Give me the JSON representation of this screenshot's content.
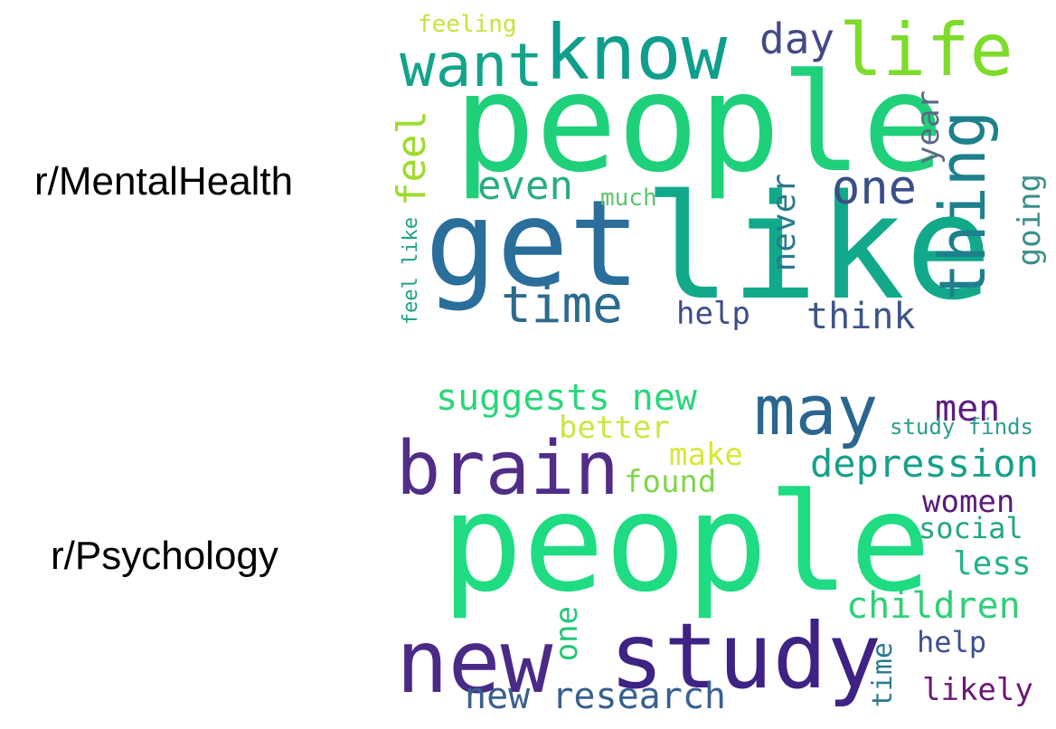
{
  "panels": [
    {
      "label": "r/MentalHealth",
      "words": [
        {
          "text": "people",
          "color": "#1fd07a"
        },
        {
          "text": "get",
          "color": "#2a6e9b"
        },
        {
          "text": "like",
          "color": "#12a98a"
        },
        {
          "text": "know",
          "color": "#109e8c"
        },
        {
          "text": "life",
          "color": "#7ddc2a"
        },
        {
          "text": "want",
          "color": "#13a489"
        },
        {
          "text": "thing",
          "color": "#1e808d"
        },
        {
          "text": "time",
          "color": "#2c6b8e"
        },
        {
          "text": "one",
          "color": "#3a4f88"
        },
        {
          "text": "even",
          "color": "#28ae7e"
        },
        {
          "text": "day",
          "color": "#434a85"
        },
        {
          "text": "feel",
          "color": "#9cdc2e"
        },
        {
          "text": "year",
          "color": "#5a6a86"
        },
        {
          "text": "never",
          "color": "#2b7a8c"
        },
        {
          "text": "going",
          "color": "#3b8f8a"
        },
        {
          "text": "think",
          "color": "#3d5589"
        },
        {
          "text": "help",
          "color": "#3f4c87"
        },
        {
          "text": "feeling",
          "color": "#c8e33a"
        },
        {
          "text": "much",
          "color": "#5cc86a"
        },
        {
          "text": "feel like",
          "color": "#20a188"
        }
      ]
    },
    {
      "label": "r/Psychology",
      "words": [
        {
          "text": "people",
          "color": "#1fdc82"
        },
        {
          "text": "new",
          "color": "#4a2a86"
        },
        {
          "text": "study",
          "color": "#3e2284"
        },
        {
          "text": "brain",
          "color": "#512d88"
        },
        {
          "text": "may",
          "color": "#2b668e"
        },
        {
          "text": "suggests new",
          "color": "#29d67a"
        },
        {
          "text": "depression",
          "color": "#16a08a"
        },
        {
          "text": "children",
          "color": "#2fcf78"
        },
        {
          "text": "new research",
          "color": "#3a6090"
        },
        {
          "text": "better",
          "color": "#cde642"
        },
        {
          "text": "make",
          "color": "#d9e636"
        },
        {
          "text": "found",
          "color": "#7fd64a"
        },
        {
          "text": "men",
          "color": "#5c1e80"
        },
        {
          "text": "women",
          "color": "#5a1a7c"
        },
        {
          "text": "social",
          "color": "#23a585"
        },
        {
          "text": "less",
          "color": "#1fb48a"
        },
        {
          "text": "help",
          "color": "#3d5090"
        },
        {
          "text": "likely",
          "color": "#6a1875"
        },
        {
          "text": "time",
          "color": "#2b7a8c"
        },
        {
          "text": "one",
          "color": "#23c777"
        },
        {
          "text": "study finds",
          "color": "#2a9e8e"
        }
      ]
    }
  ]
}
